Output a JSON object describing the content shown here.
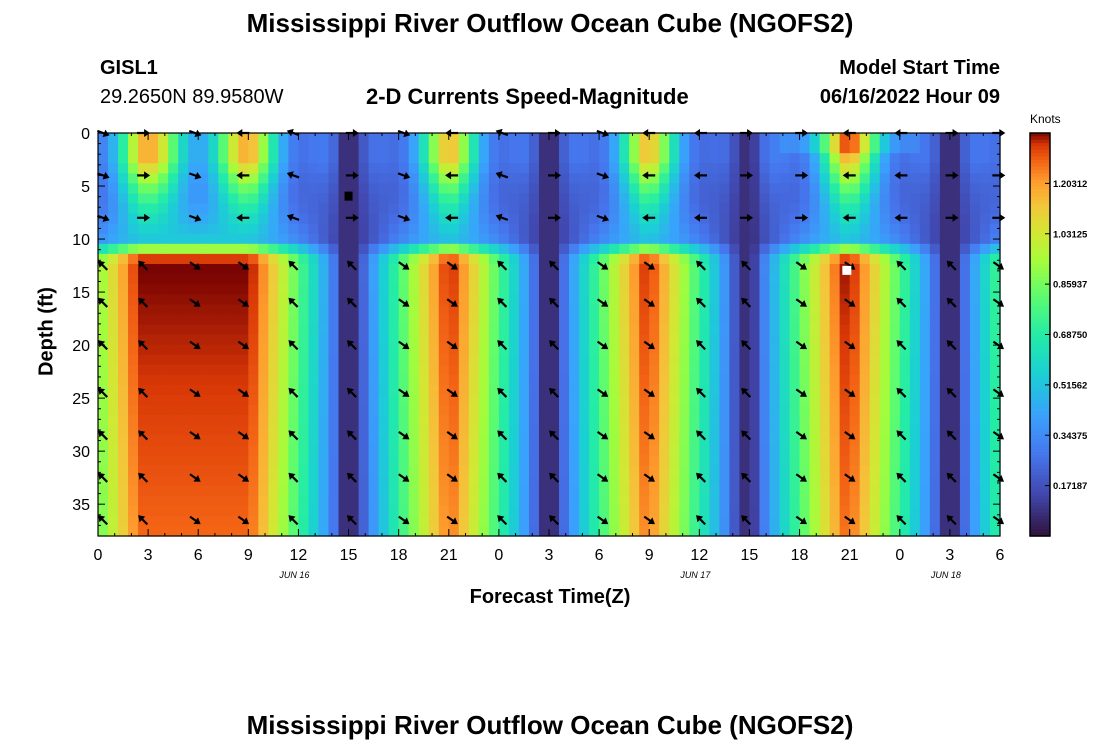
{
  "header": {
    "title": "Mississippi River Outflow Ocean Cube (NGOFS2)",
    "station_id": "GISL1",
    "station_coords": "29.2650N  89.9580W",
    "subtitle": "2-D Currents Speed-Magnitude",
    "model_start_label": "Model Start Time",
    "model_start_value": "06/16/2022 Hour 09"
  },
  "footer": {
    "title": "Mississippi River Outflow Ocean Cube (NGOFS2)"
  },
  "chart_data": {
    "type": "heatmap",
    "xlabel": "Forecast Time(Z)",
    "ylabel": "Depth (ft)",
    "x_range_hours": [
      0,
      54
    ],
    "y_range_ft": [
      0,
      38
    ],
    "x_ticks": [
      "0",
      "3",
      "6",
      "9",
      "12",
      "15",
      "18",
      "21",
      "0",
      "3",
      "6",
      "9",
      "12",
      "15",
      "18",
      "21",
      "0",
      "3",
      "6"
    ],
    "x_tick_hours": [
      0,
      3,
      6,
      9,
      12,
      15,
      18,
      21,
      24,
      27,
      30,
      33,
      36,
      39,
      42,
      45,
      48,
      51,
      54
    ],
    "y_ticks": [
      0,
      5,
      10,
      15,
      20,
      25,
      30,
      35
    ],
    "date_labels": [
      {
        "label": "JUN 16",
        "hour": 12
      },
      {
        "label": "JUN 17",
        "hour": 36
      },
      {
        "label": "JUN 18",
        "hour": 51
      }
    ],
    "colorbar": {
      "label": "Knots",
      "min": 0.0,
      "max": 1.375,
      "tick_values": [
        0.171875,
        0.34375,
        0.515625,
        0.6875,
        0.859375,
        1.03125,
        1.203125
      ],
      "tick_labels": [
        "0.17187",
        "0.34375",
        "0.51562",
        "0.68750",
        "0.85937",
        "1.03125",
        "1.20312"
      ]
    },
    "speed_minima_hours": [
      15.1,
      27,
      38.8,
      51
    ],
    "speed_maxima_hours": [
      9,
      21,
      33,
      45
    ],
    "depth_layers_ft": [
      0,
      4,
      8,
      12.5,
      16,
      20,
      24.5,
      28.5,
      32.5,
      36.5
    ],
    "vector_columns_hours": [
      0.3,
      2.7,
      5.8,
      8.7,
      11.7,
      15.2,
      18.3,
      21.2,
      24.2,
      27.3,
      30.2,
      33.0,
      36.1,
      38.8,
      42.1,
      45.0,
      48.1,
      51.1,
      53.9
    ]
  }
}
